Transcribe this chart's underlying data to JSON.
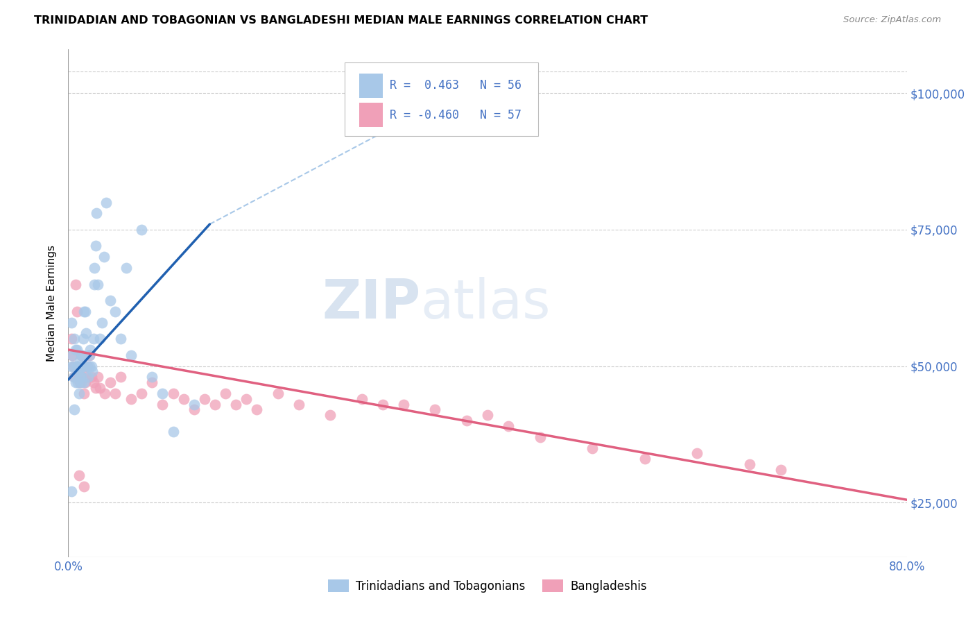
{
  "title": "TRINIDADIAN AND TOBAGONIAN VS BANGLADESHI MEDIAN MALE EARNINGS CORRELATION CHART",
  "source": "Source: ZipAtlas.com",
  "ylabel": "Median Male Earnings",
  "xlim": [
    0.0,
    0.8
  ],
  "ylim": [
    15000,
    108000
  ],
  "yticks": [
    25000,
    50000,
    75000,
    100000
  ],
  "ytick_labels": [
    "$25,000",
    "$50,000",
    "$75,000",
    "$100,000"
  ],
  "xticks": [
    0.0,
    0.1,
    0.2,
    0.3,
    0.4,
    0.5,
    0.6,
    0.7,
    0.8
  ],
  "legend_labels": [
    "Trinidadians and Tobagonians",
    "Bangladeshis"
  ],
  "blue_color": "#A8C8E8",
  "pink_color": "#F0A0B8",
  "blue_line_color": "#2060B0",
  "pink_line_color": "#E06080",
  "dashed_line_color": "#A8C8E8",
  "axis_color": "#4472C4",
  "watermark_zip": "ZIP",
  "watermark_atlas": "atlas",
  "background_color": "#FFFFFF",
  "grid_color": "#CCCCCC",
  "blue_scatter_x": [
    0.003,
    0.004,
    0.005,
    0.006,
    0.007,
    0.008,
    0.009,
    0.01,
    0.011,
    0.012,
    0.013,
    0.014,
    0.015,
    0.016,
    0.017,
    0.018,
    0.019,
    0.02,
    0.021,
    0.022,
    0.023,
    0.024,
    0.025,
    0.026,
    0.027,
    0.028,
    0.03,
    0.032,
    0.034,
    0.036,
    0.04,
    0.045,
    0.05,
    0.055,
    0.06,
    0.07,
    0.08,
    0.09,
    0.1,
    0.12,
    0.003,
    0.005,
    0.007,
    0.008,
    0.009,
    0.01,
    0.011,
    0.012,
    0.013,
    0.014,
    0.015,
    0.02,
    0.025,
    0.012,
    0.003,
    0.006
  ],
  "blue_scatter_y": [
    50000,
    52000,
    48000,
    55000,
    47000,
    53000,
    50000,
    49000,
    51000,
    48000,
    52000,
    55000,
    47000,
    60000,
    56000,
    50000,
    48000,
    52000,
    53000,
    50000,
    49000,
    55000,
    68000,
    72000,
    78000,
    65000,
    55000,
    58000,
    70000,
    80000,
    62000,
    60000,
    55000,
    68000,
    52000,
    75000,
    48000,
    45000,
    38000,
    43000,
    58000,
    50000,
    53000,
    50000,
    47000,
    45000,
    48000,
    50000,
    52000,
    50000,
    60000,
    50000,
    65000,
    47000,
    27000,
    42000
  ],
  "pink_scatter_x": [
    0.003,
    0.004,
    0.005,
    0.006,
    0.007,
    0.008,
    0.009,
    0.01,
    0.011,
    0.012,
    0.013,
    0.014,
    0.015,
    0.016,
    0.017,
    0.018,
    0.02,
    0.022,
    0.024,
    0.026,
    0.028,
    0.03,
    0.035,
    0.04,
    0.045,
    0.05,
    0.06,
    0.07,
    0.08,
    0.09,
    0.1,
    0.11,
    0.12,
    0.13,
    0.14,
    0.15,
    0.16,
    0.17,
    0.18,
    0.2,
    0.22,
    0.25,
    0.28,
    0.3,
    0.32,
    0.35,
    0.38,
    0.4,
    0.42,
    0.45,
    0.5,
    0.55,
    0.6,
    0.65,
    0.68,
    0.01,
    0.015
  ],
  "pink_scatter_y": [
    55000,
    52000,
    50000,
    48000,
    65000,
    60000,
    50000,
    48000,
    47000,
    52000,
    48000,
    50000,
    45000,
    47000,
    48000,
    50000,
    52000,
    48000,
    47000,
    46000,
    48000,
    46000,
    45000,
    47000,
    45000,
    48000,
    44000,
    45000,
    47000,
    43000,
    45000,
    44000,
    42000,
    44000,
    43000,
    45000,
    43000,
    44000,
    42000,
    45000,
    43000,
    41000,
    44000,
    43000,
    43000,
    42000,
    40000,
    41000,
    39000,
    37000,
    35000,
    33000,
    34000,
    32000,
    31000,
    30000,
    28000
  ],
  "blue_line_x": [
    0.0,
    0.135
  ],
  "blue_line_y": [
    47500,
    76000
  ],
  "pink_line_x": [
    0.0,
    0.8
  ],
  "pink_line_y": [
    53000,
    25500
  ],
  "dashed_line_x": [
    0.135,
    0.42
  ],
  "dashed_line_y": [
    76000,
    105000
  ]
}
